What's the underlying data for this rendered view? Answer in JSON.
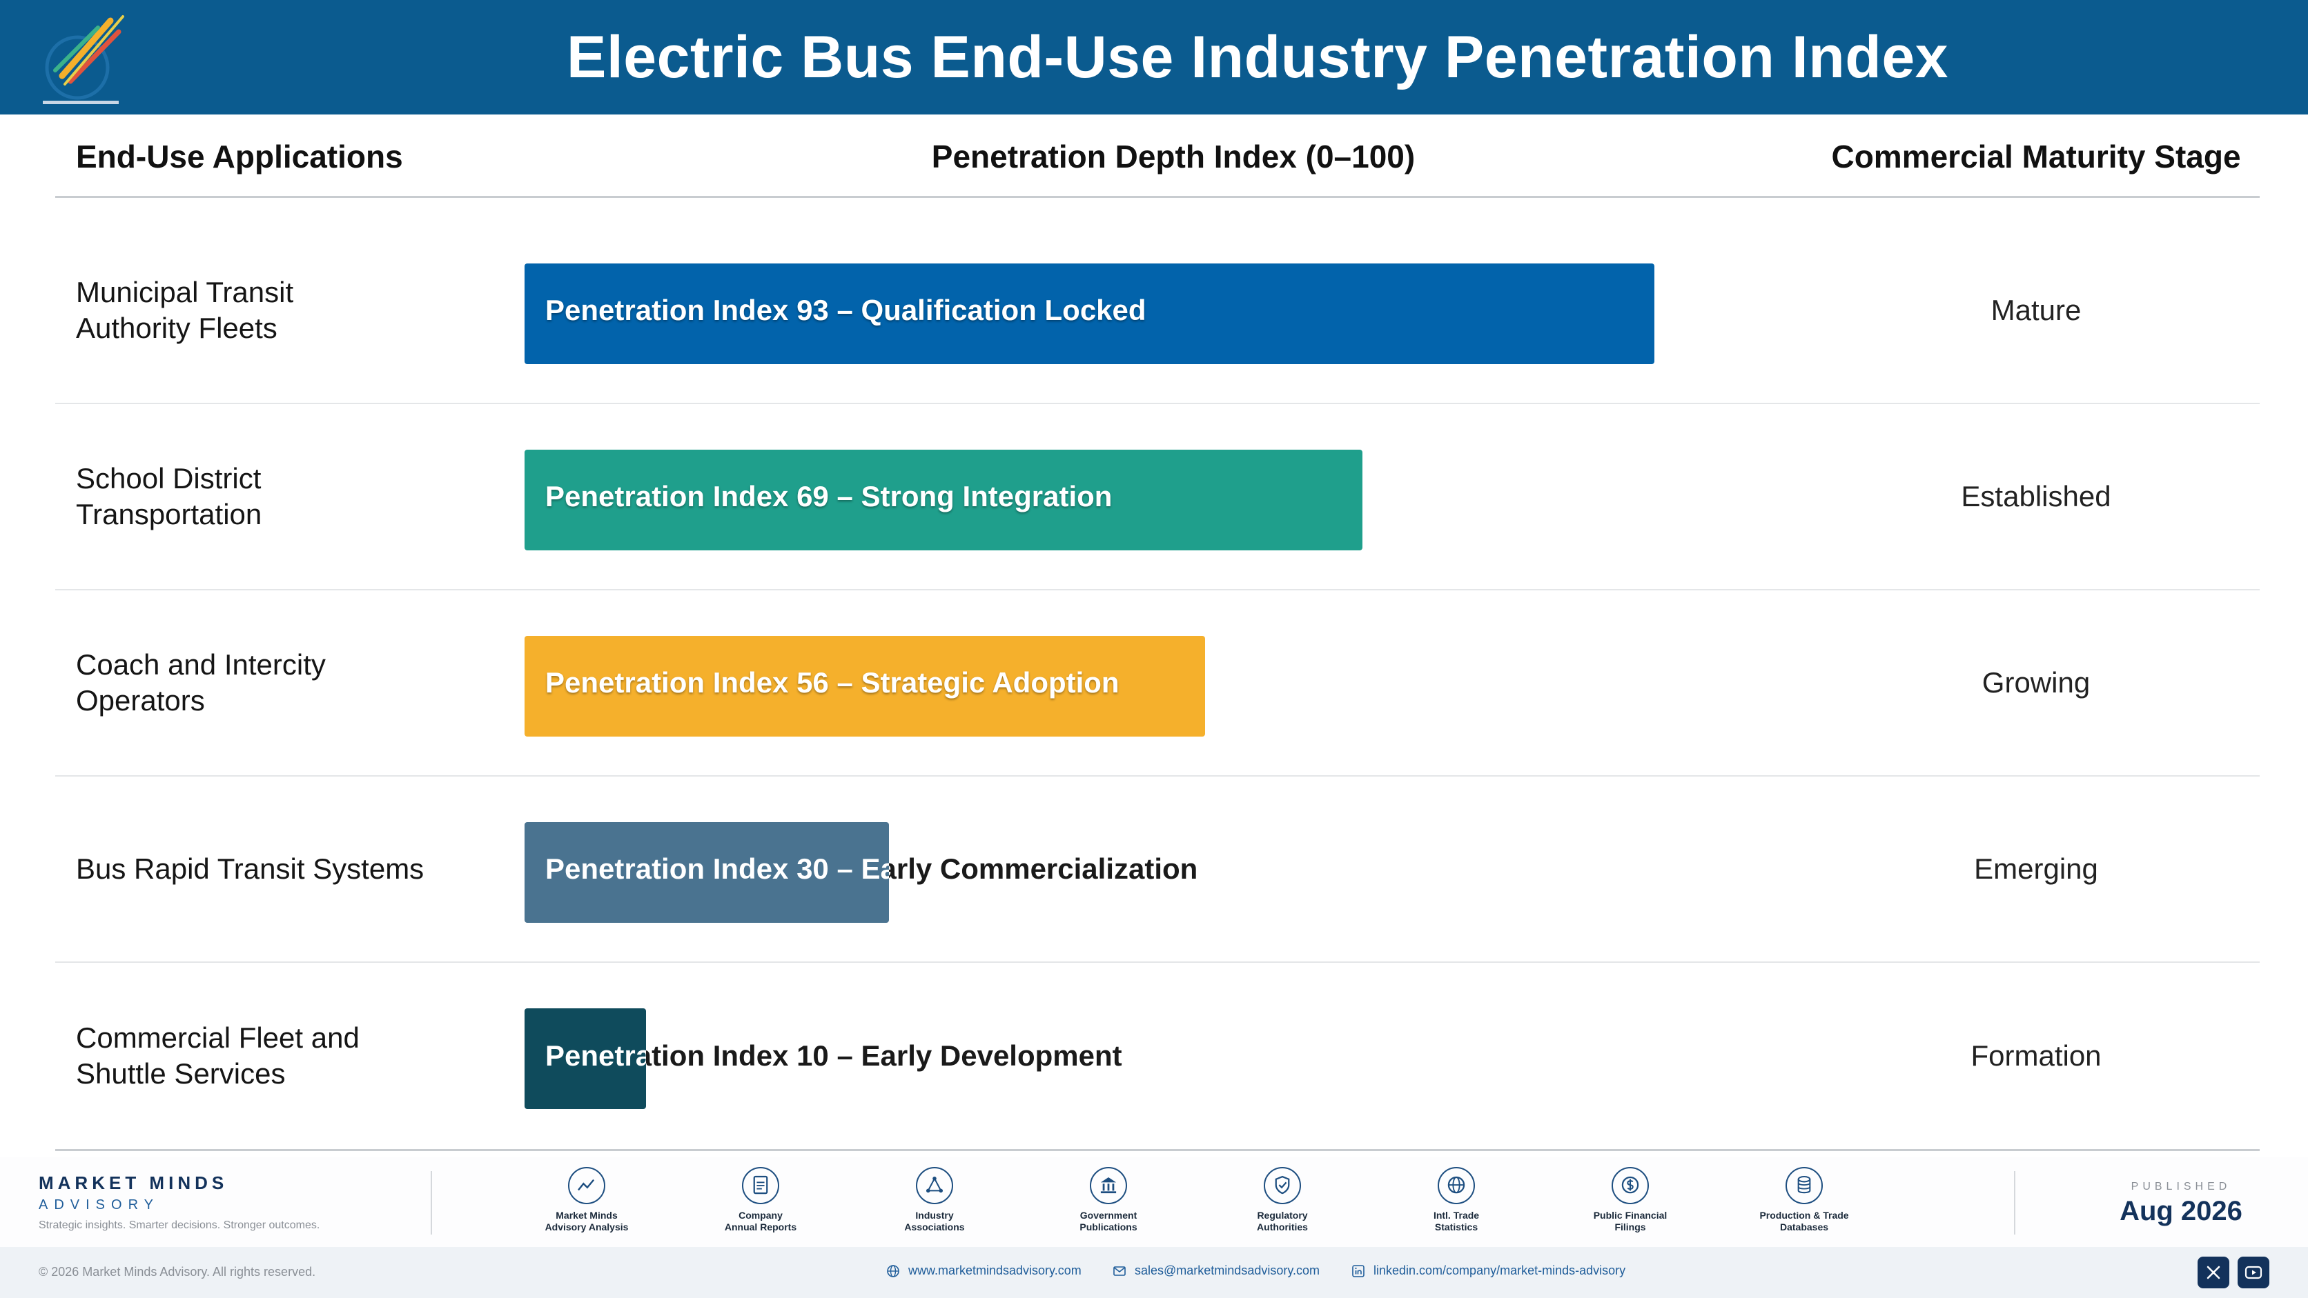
{
  "header": {
    "title": "Electric Bus End-Use Industry Penetration Index",
    "logo_icon": "market-minds-logo-icon"
  },
  "columns": {
    "applications": "End-Use Applications",
    "index": "Penetration Depth Index (0–100)",
    "stage": "Commercial Maturity Stage"
  },
  "chart_data": {
    "type": "bar",
    "orientation": "horizontal",
    "title": "Electric Bus End-Use Industry Penetration Index",
    "xlabel": "Penetration Depth Index (0–100)",
    "xlim": [
      0,
      100
    ],
    "categories": [
      "Municipal Transit\nAuthority Fleets",
      "School District\nTransportation",
      "Coach and Intercity\nOperators",
      "Bus Rapid Transit Systems",
      "Commercial Fleet and\nShuttle Services"
    ],
    "values": [
      93,
      69,
      56,
      30,
      10
    ],
    "data_labels": [
      "Penetration Index 93 – Qualification Locked",
      "Penetration Index 69 – Strong Integration",
      "Penetration Index 56 – Strategic Adoption",
      "Penetration Index 30 – Early Commercialization",
      "Penetration Index 10 – Early Development"
    ],
    "stages": [
      "Mature",
      "Established",
      "Growing",
      "Emerging",
      "Formation"
    ],
    "colors": [
      "#0263ab",
      "#1f9f8c",
      "#f5b02c",
      "#4a7390",
      "#0f4b5c"
    ]
  },
  "footer": {
    "brand_name": "MARKET MINDS",
    "brand_sub": "ADVISORY",
    "tagline": "Strategic insights. Smarter decisions. Stronger outcomes.",
    "sources": [
      {
        "label": "Market Minds\nAdvisory Analysis",
        "icon": "trend-chart-icon"
      },
      {
        "label": "Company\nAnnual Reports",
        "icon": "document-icon"
      },
      {
        "label": "Industry\nAssociations",
        "icon": "network-icon"
      },
      {
        "label": "Government\nPublications",
        "icon": "government-building-icon"
      },
      {
        "label": "Regulatory\nAuthorities",
        "icon": "shield-check-icon"
      },
      {
        "label": "Intl. Trade\nStatistics",
        "icon": "globe-icon"
      },
      {
        "label": "Public Financial\nFilings",
        "icon": "dollar-coin-icon"
      },
      {
        "label": "Production & Trade\nDatabases",
        "icon": "database-icon"
      }
    ],
    "published_label": "PUBLISHED",
    "published_date": "Aug 2026",
    "copyright": "© 2026 Market Minds Advisory. All rights reserved.",
    "website": "www.marketmindsadvisory.com",
    "email": "sales@marketmindsadvisory.com",
    "linkedin": "linkedin.com/company/market-minds-advisory",
    "social_icons": [
      "x-icon",
      "youtube-icon"
    ]
  }
}
